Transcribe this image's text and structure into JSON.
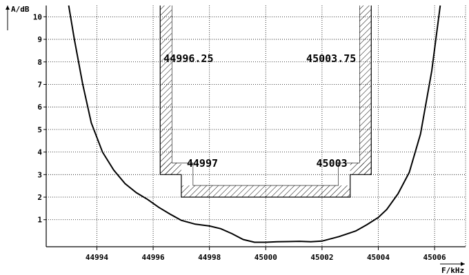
{
  "chart_data": {
    "type": "line",
    "title": "",
    "xlabel": "F/kHz",
    "ylabel": "A/dB",
    "xlim": [
      44992.2,
      45007.1
    ],
    "ylim": [
      -0.2,
      10.5
    ],
    "x_ticks": [
      44994,
      44996,
      44998,
      45000,
      45002,
      45004,
      45006
    ],
    "y_ticks": [
      1,
      2,
      3,
      4,
      5,
      6,
      7,
      8,
      9,
      10
    ],
    "grid": true,
    "series": [
      {
        "points": [
          [
            44993.0,
            10.5
          ],
          [
            44993.2,
            9.0
          ],
          [
            44993.5,
            7.0
          ],
          [
            44993.8,
            5.3
          ],
          [
            44994.2,
            4.0
          ],
          [
            44994.6,
            3.2
          ],
          [
            44995.0,
            2.6
          ],
          [
            44995.4,
            2.2
          ],
          [
            44995.8,
            1.9
          ],
          [
            44996.2,
            1.55
          ],
          [
            44996.6,
            1.25
          ],
          [
            44997.0,
            0.97
          ],
          [
            44997.5,
            0.8
          ],
          [
            44998.0,
            0.72
          ],
          [
            44998.4,
            0.6
          ],
          [
            44998.8,
            0.38
          ],
          [
            44999.2,
            0.12
          ],
          [
            44999.6,
            0.0
          ],
          [
            45000.0,
            0.0
          ],
          [
            45000.4,
            0.02
          ],
          [
            45000.8,
            0.03
          ],
          [
            45001.2,
            0.04
          ],
          [
            45001.6,
            0.02
          ],
          [
            45002.0,
            0.05
          ],
          [
            45002.6,
            0.25
          ],
          [
            45003.2,
            0.5
          ],
          [
            45003.6,
            0.78
          ],
          [
            45004.0,
            1.1
          ],
          [
            45004.3,
            1.45
          ],
          [
            45004.7,
            2.15
          ],
          [
            45005.1,
            3.1
          ],
          [
            45005.5,
            4.8
          ],
          [
            45005.9,
            7.6
          ],
          [
            45006.2,
            10.5
          ]
        ]
      }
    ],
    "tolerance_mask": {
      "outer_left_x": 44996.25,
      "outer_right_x": 45003.75,
      "outer_level": 3,
      "inner_left_x": 44997,
      "inner_right_x": 45003,
      "inner_level": 2
    },
    "annotations": [
      {
        "text": "44996.25",
        "x": 44996.25,
        "y": 8
      },
      {
        "text": "45003.75",
        "x": 45003.75,
        "y": 8
      },
      {
        "text": "44997",
        "x": 44997,
        "y": 3.35
      },
      {
        "text": "45003",
        "x": 45003,
        "y": 3.35
      }
    ]
  }
}
